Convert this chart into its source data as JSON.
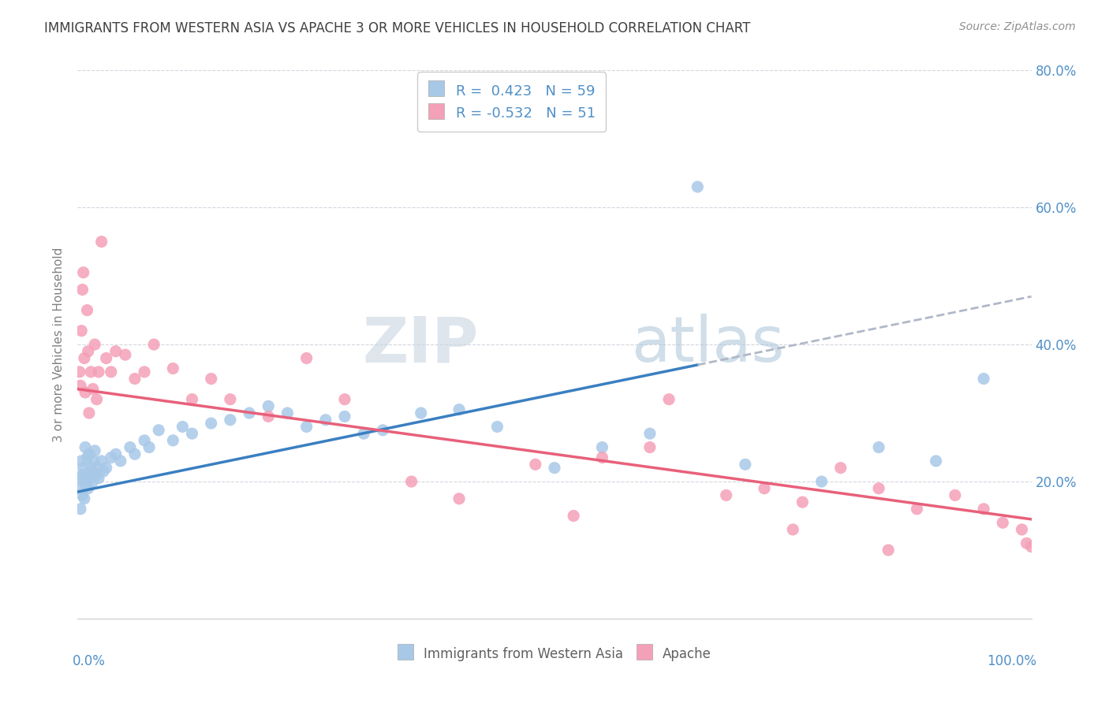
{
  "title": "IMMIGRANTS FROM WESTERN ASIA VS APACHE 3 OR MORE VEHICLES IN HOUSEHOLD CORRELATION CHART",
  "source": "Source: ZipAtlas.com",
  "legend_label1": "Immigrants from Western Asia",
  "legend_label2": "Apache",
  "r1": 0.423,
  "n1": 59,
  "r2": -0.532,
  "n2": 51,
  "blue_scatter": "#a8c8e8",
  "pink_scatter": "#f4a0b8",
  "blue_line": "#3a7fc1",
  "pink_line": "#e8607a",
  "dash_color": "#b0b8c8",
  "title_color": "#404040",
  "tick_color": "#5090c8",
  "ylabel_color": "#808080",
  "source_color": "#909090",
  "watermark_color": "#d0dce8",
  "xlim": [
    0.0,
    100.0
  ],
  "ylim": [
    0.0,
    80.0
  ],
  "blue_line_x0": 0,
  "blue_line_y0": 18.5,
  "blue_line_x1": 100,
  "blue_line_y1": 47.0,
  "blue_solid_end": 65,
  "pink_line_x0": 0,
  "pink_line_y0": 33.5,
  "pink_line_x1": 100,
  "pink_line_y1": 14.5,
  "blue_outlier_x": 65,
  "blue_outlier_y": 63,
  "blue_points_x": [
    0.2,
    0.3,
    0.3,
    0.4,
    0.5,
    0.5,
    0.6,
    0.7,
    0.7,
    0.8,
    0.9,
    1.0,
    1.0,
    1.1,
    1.2,
    1.3,
    1.4,
    1.5,
    1.6,
    1.7,
    1.8,
    2.0,
    2.0,
    2.2,
    2.5,
    2.7,
    3.0,
    3.5,
    4.0,
    4.5,
    5.5,
    6.0,
    7.0,
    7.5,
    8.5,
    10.0,
    11.0,
    12.0,
    14.0,
    16.0,
    18.0,
    20.0,
    22.0,
    24.0,
    26.0,
    28.0,
    30.0,
    32.0,
    36.0,
    40.0,
    44.0,
    50.0,
    55.0,
    60.0,
    70.0,
    78.0,
    84.0,
    90.0,
    95.0
  ],
  "blue_points_y": [
    20.5,
    19.0,
    16.0,
    23.0,
    21.0,
    18.0,
    22.0,
    20.0,
    17.5,
    25.0,
    19.5,
    23.5,
    21.0,
    19.0,
    24.0,
    20.5,
    22.0,
    21.5,
    20.0,
    23.0,
    24.5,
    22.0,
    21.0,
    20.5,
    23.0,
    21.5,
    22.0,
    23.5,
    24.0,
    23.0,
    25.0,
    24.0,
    26.0,
    25.0,
    27.5,
    26.0,
    28.0,
    27.0,
    28.5,
    29.0,
    30.0,
    31.0,
    30.0,
    28.0,
    29.0,
    29.5,
    27.0,
    27.5,
    30.0,
    30.5,
    28.0,
    22.0,
    25.0,
    27.0,
    22.5,
    20.0,
    25.0,
    23.0,
    35.0
  ],
  "pink_points_x": [
    0.2,
    0.3,
    0.4,
    0.5,
    0.6,
    0.7,
    0.8,
    1.0,
    1.1,
    1.2,
    1.4,
    1.6,
    1.8,
    2.0,
    2.2,
    2.5,
    3.0,
    3.5,
    4.0,
    5.0,
    6.0,
    7.0,
    8.0,
    10.0,
    12.0,
    14.0,
    16.0,
    20.0,
    24.0,
    28.0,
    35.0,
    40.0,
    48.0,
    55.0,
    62.0,
    68.0,
    72.0,
    76.0,
    80.0,
    84.0,
    88.0,
    92.0,
    95.0,
    97.0,
    99.0,
    99.5,
    100.0,
    52.0,
    60.0,
    75.0,
    85.0
  ],
  "pink_points_y": [
    36.0,
    34.0,
    42.0,
    48.0,
    50.5,
    38.0,
    33.0,
    45.0,
    39.0,
    30.0,
    36.0,
    33.5,
    40.0,
    32.0,
    36.0,
    55.0,
    38.0,
    36.0,
    39.0,
    38.5,
    35.0,
    36.0,
    40.0,
    36.5,
    32.0,
    35.0,
    32.0,
    29.5,
    38.0,
    32.0,
    20.0,
    17.5,
    22.5,
    23.5,
    32.0,
    18.0,
    19.0,
    17.0,
    22.0,
    19.0,
    16.0,
    18.0,
    16.0,
    14.0,
    13.0,
    11.0,
    10.5,
    15.0,
    25.0,
    13.0,
    10.0
  ]
}
